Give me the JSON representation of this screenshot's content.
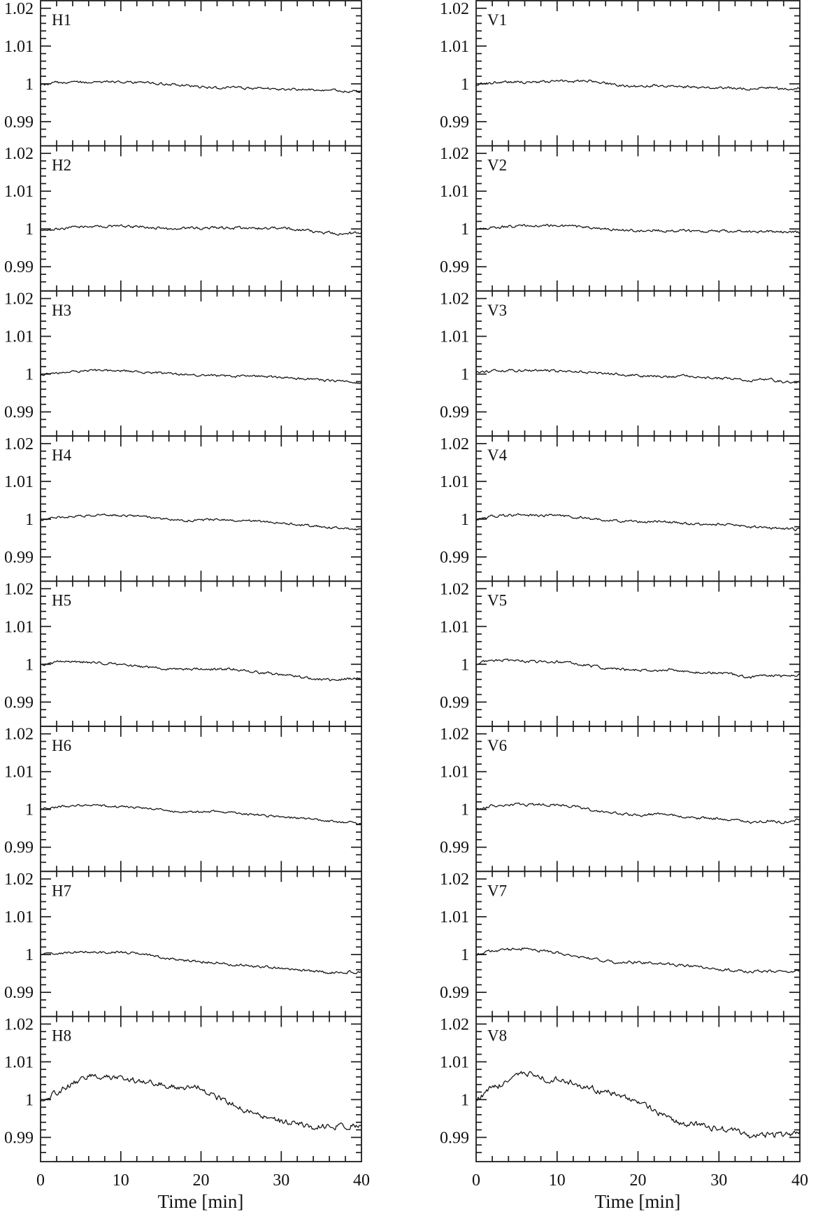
{
  "figure": {
    "xlabel": "Time [min]",
    "background": "#ffffff",
    "axis_color": "#1c1c1c",
    "trace_color": "#111111"
  },
  "chart_data": {
    "type": "line",
    "xlabel": "Time [min]",
    "xlim": [
      0,
      40
    ],
    "x_major_ticks": [
      0,
      10,
      20,
      30,
      40
    ],
    "x_major_tick_labels": [
      "0",
      "10",
      "20",
      "30",
      "40"
    ],
    "x_minor_step": 2,
    "y_major_ticks": [
      0.99,
      1.0,
      1.01,
      1.02
    ],
    "y_tick_labels": [
      "0.99",
      "1",
      "1.01",
      "1.02"
    ],
    "y_minor_step": 0.002,
    "ylim_display": [
      0.9836,
      1.022
    ],
    "grid": false,
    "legend": "none",
    "x": [
      0,
      2,
      4,
      6,
      8,
      10,
      12,
      14,
      16,
      18,
      20,
      22,
      24,
      26,
      28,
      30,
      32,
      34,
      36,
      38,
      40
    ],
    "panels": [
      {
        "label": "H1",
        "column": "left",
        "row": 1,
        "label_color": "#ee1111",
        "noise": 0.00032,
        "values": [
          0.9999,
          1.0003,
          1.0005,
          1.0004,
          1.0006,
          1.0005,
          1.0004,
          1.0002,
          0.9999,
          0.9996,
          0.9991,
          0.9989,
          0.999,
          0.9989,
          0.9987,
          0.9986,
          0.9985,
          0.9984,
          0.9983,
          0.9981,
          0.9979
        ]
      },
      {
        "label": "H2",
        "column": "left",
        "row": 2,
        "label_color": "#ee1111",
        "noise": 0.00036,
        "values": [
          0.9997,
          1.0,
          1.0004,
          1.0005,
          1.0007,
          1.0009,
          1.0006,
          1.0003,
          0.9999,
          1.0002,
          1.0001,
          1.0004,
          1.0002,
          1.0003,
          1.0001,
          1.0002,
          0.9999,
          0.9993,
          0.9989,
          0.9988,
          0.999
        ]
      },
      {
        "label": "H3",
        "column": "left",
        "row": 3,
        "label_color": "#ee1111",
        "noise": 0.0003,
        "values": [
          0.9998,
          1.0003,
          1.0007,
          1.0009,
          1.001,
          1.0008,
          1.0007,
          1.0004,
          1.0001,
          0.9999,
          0.9997,
          0.9995,
          0.9994,
          0.9995,
          0.9993,
          0.9991,
          0.9989,
          0.9986,
          0.9983,
          0.998,
          0.9977
        ]
      },
      {
        "label": "H4",
        "column": "left",
        "row": 4,
        "label_color": "#ee1111",
        "noise": 0.0003,
        "values": [
          0.9998,
          1.0004,
          1.0008,
          1.001,
          1.0011,
          1.0009,
          1.0007,
          1.0003,
          0.9999,
          0.9997,
          0.9997,
          1.0,
          0.9996,
          0.9996,
          0.9993,
          0.999,
          0.9986,
          0.9982,
          0.9978,
          0.9975,
          0.9972
        ]
      },
      {
        "label": "H5",
        "column": "left",
        "row": 5,
        "label_color": "#ee1111",
        "noise": 0.00034,
        "values": [
          0.9999,
          1.0006,
          1.0008,
          1.0006,
          1.0003,
          0.9999,
          0.9995,
          0.9991,
          0.9988,
          0.9986,
          0.9988,
          0.9986,
          0.9987,
          0.9982,
          0.9977,
          0.9972,
          0.9967,
          0.9962,
          0.9958,
          0.9961,
          0.9964
        ]
      },
      {
        "label": "H6",
        "column": "left",
        "row": 6,
        "label_color": "#ee1111",
        "noise": 0.0003,
        "values": [
          1.0,
          1.0006,
          1.0011,
          1.0011,
          1.0009,
          1.0007,
          1.0004,
          1.0001,
          0.9997,
          0.9994,
          0.9993,
          0.9995,
          0.9991,
          0.9987,
          0.9983,
          0.998,
          0.9977,
          0.9973,
          0.9969,
          0.9966,
          0.9964
        ]
      },
      {
        "label": "H7",
        "column": "left",
        "row": 7,
        "label_color": "#ee1111",
        "noise": 0.00034,
        "values": [
          1.0,
          1.0003,
          1.0006,
          1.0008,
          1.0005,
          1.0006,
          1.0003,
          0.9996,
          0.9989,
          0.9985,
          0.9981,
          0.9978,
          0.9974,
          0.997,
          0.9967,
          0.9963,
          0.996,
          0.9956,
          0.9952,
          0.9954,
          0.9952
        ]
      },
      {
        "label": "H8",
        "column": "left",
        "row": 8,
        "label_color": "#ee1111",
        "noise": 0.00075,
        "values": [
          1.0,
          1.002,
          1.0042,
          1.0066,
          1.0058,
          1.006,
          1.005,
          1.0044,
          1.0037,
          1.003,
          1.0032,
          1.0005,
          0.999,
          0.9968,
          0.9956,
          0.9942,
          0.9938,
          0.9927,
          0.9931,
          0.9929,
          0.9936
        ]
      },
      {
        "label": "V1",
        "column": "right",
        "row": 1,
        "label_color": "#2020dd",
        "noise": 0.00034,
        "values": [
          0.9998,
          1.0002,
          1.0006,
          1.0004,
          1.0005,
          1.0007,
          1.0006,
          1.0008,
          1.0002,
          0.9996,
          0.9993,
          0.9996,
          0.9994,
          0.9992,
          0.999,
          0.9988,
          0.9989,
          0.9987,
          0.999,
          0.9987,
          0.9989
        ]
      },
      {
        "label": "V2",
        "column": "right",
        "row": 2,
        "label_color": "#2020dd",
        "noise": 0.00034,
        "values": [
          1.0,
          1.0003,
          1.0007,
          1.0009,
          1.0008,
          1.001,
          1.0007,
          1.0003,
          1.0,
          0.9997,
          0.9995,
          0.9997,
          0.9994,
          0.9996,
          0.9993,
          0.9995,
          0.9994,
          0.9992,
          0.9994,
          0.9992,
          0.999
        ]
      },
      {
        "label": "V3",
        "column": "right",
        "row": 3,
        "label_color": "#2020dd",
        "noise": 0.00034,
        "values": [
          1.0004,
          1.0008,
          1.001,
          1.0009,
          1.0011,
          1.0008,
          1.0009,
          1.0005,
          1.0001,
          0.9999,
          0.9996,
          0.9994,
          0.9992,
          0.9995,
          0.999,
          0.9989,
          0.9986,
          0.9983,
          0.9988,
          0.9979,
          0.9977
        ]
      },
      {
        "label": "V4",
        "column": "right",
        "row": 4,
        "label_color": "#2020dd",
        "noise": 0.00034,
        "values": [
          1.0,
          1.0008,
          1.001,
          1.0011,
          1.0009,
          1.001,
          1.0006,
          1.0001,
          0.9997,
          0.9994,
          0.9992,
          0.9995,
          0.9991,
          0.9988,
          0.9985,
          0.9987,
          0.9983,
          0.998,
          0.9977,
          0.9975,
          0.9972
        ]
      },
      {
        "label": "V5",
        "column": "right",
        "row": 5,
        "label_color": "#2020dd",
        "noise": 0.00036,
        "values": [
          1.0001,
          1.001,
          1.0011,
          1.0008,
          1.0006,
          1.0008,
          1.0002,
          0.9996,
          0.999,
          0.9986,
          0.9985,
          0.9982,
          0.9987,
          0.9979,
          0.9978,
          0.9977,
          0.9972,
          0.9965,
          0.9971,
          0.9968,
          0.9974
        ]
      },
      {
        "label": "V6",
        "column": "right",
        "row": 6,
        "label_color": "#2020dd",
        "noise": 0.00036,
        "values": [
          1.0,
          1.001,
          1.0013,
          1.0012,
          1.0014,
          1.001,
          1.0008,
          0.9999,
          0.9993,
          0.9988,
          0.9985,
          0.9988,
          0.9983,
          0.9979,
          0.9976,
          0.9975,
          0.9972,
          0.9965,
          0.997,
          0.9966,
          0.9974
        ]
      },
      {
        "label": "V7",
        "column": "right",
        "row": 7,
        "label_color": "#2020dd",
        "noise": 0.00036,
        "values": [
          1.0,
          1.001,
          1.0013,
          1.0017,
          1.001,
          1.0004,
          0.9996,
          0.9989,
          0.9983,
          0.9979,
          0.9981,
          0.9976,
          0.9973,
          0.997,
          0.9967,
          0.9962,
          0.9957,
          0.9954,
          0.9957,
          0.9952,
          0.9956
        ]
      },
      {
        "label": "V8",
        "column": "right",
        "row": 8,
        "label_color": "#2020dd",
        "noise": 0.0008,
        "values": [
          1.0,
          1.003,
          1.0048,
          1.0072,
          1.0056,
          1.0052,
          1.0045,
          1.0032,
          1.0022,
          1.0008,
          0.9992,
          0.9972,
          0.995,
          0.9933,
          0.9936,
          0.9921,
          0.9922,
          0.9898,
          0.9908,
          0.9906,
          0.9917
        ]
      }
    ]
  }
}
